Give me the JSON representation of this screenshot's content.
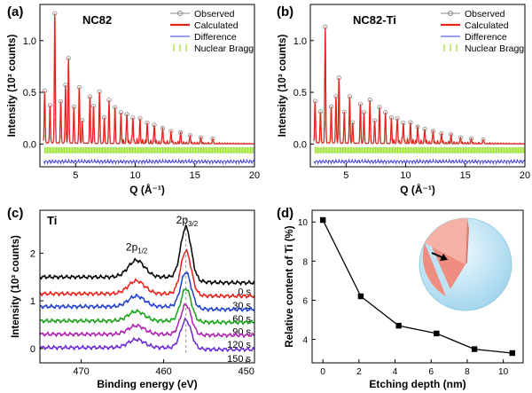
{
  "figure": {
    "colors": {
      "observed": "#888888",
      "calculated": "#e8221b",
      "difference": "#3a3ad8",
      "bragg": "#9ae02c",
      "axis": "#000000"
    }
  },
  "chart_data": [
    {
      "panel": "(a)",
      "type": "line",
      "title": "NC82",
      "xlabel": "Q (Å⁻¹)",
      "ylabel": "Intensity (10³ counts)",
      "xlim": [
        2,
        20
      ],
      "ylim": [
        -0.22,
        1.35
      ],
      "xticks": [
        5,
        10,
        15,
        20
      ],
      "yticks": [
        0.0,
        0.5,
        1.0
      ],
      "legend": [
        "Observed",
        "Calculated",
        "Difference",
        "Nuclear Bragg"
      ],
      "legend_position": "top-right",
      "peaks": [
        {
          "q": 2.4,
          "h": 0.5
        },
        {
          "q": 2.85,
          "h": 0.36
        },
        {
          "q": 3.25,
          "h": 1.25
        },
        {
          "q": 3.75,
          "h": 0.4
        },
        {
          "q": 4.15,
          "h": 0.56
        },
        {
          "q": 4.4,
          "h": 0.82
        },
        {
          "q": 4.85,
          "h": 0.35
        },
        {
          "q": 5.3,
          "h": 0.54
        },
        {
          "q": 5.55,
          "h": 0.22
        },
        {
          "q": 6.2,
          "h": 0.45
        },
        {
          "q": 6.5,
          "h": 0.36
        },
        {
          "q": 7.0,
          "h": 0.5
        },
        {
          "q": 7.4,
          "h": 0.25
        },
        {
          "q": 7.8,
          "h": 0.42
        },
        {
          "q": 8.3,
          "h": 0.35
        },
        {
          "q": 8.8,
          "h": 0.3
        },
        {
          "q": 9.3,
          "h": 0.28
        },
        {
          "q": 9.8,
          "h": 0.25
        },
        {
          "q": 10.4,
          "h": 0.22
        },
        {
          "q": 11.0,
          "h": 0.2
        },
        {
          "q": 11.6,
          "h": 0.18
        },
        {
          "q": 12.3,
          "h": 0.15
        },
        {
          "q": 13.0,
          "h": 0.12
        },
        {
          "q": 13.8,
          "h": 0.1
        },
        {
          "q": 14.6,
          "h": 0.08
        },
        {
          "q": 15.5,
          "h": 0.06
        },
        {
          "q": 16.5,
          "h": 0.05
        }
      ],
      "bragg_level": -0.06,
      "difference_level": -0.17
    },
    {
      "panel": "(b)",
      "type": "line",
      "title": "NC82-Ti",
      "xlabel": "Q (Å⁻¹)",
      "ylabel": "Intensity (10³ counts)",
      "xlim": [
        2,
        20
      ],
      "ylim": [
        -0.22,
        1.35
      ],
      "xticks": [
        5,
        10,
        15,
        20
      ],
      "yticks": [
        0.0,
        0.5,
        1.0
      ],
      "legend": [
        "Observed",
        "Calculated",
        "Difference",
        "Nuclear Bragg"
      ],
      "legend_position": "top-right",
      "peaks": [
        {
          "q": 2.4,
          "h": 0.4
        },
        {
          "q": 2.85,
          "h": 0.3
        },
        {
          "q": 3.25,
          "h": 1.12
        },
        {
          "q": 3.75,
          "h": 0.35
        },
        {
          "q": 4.15,
          "h": 0.45
        },
        {
          "q": 4.4,
          "h": 0.63
        },
        {
          "q": 4.85,
          "h": 0.3
        },
        {
          "q": 5.3,
          "h": 0.45
        },
        {
          "q": 5.55,
          "h": 0.2
        },
        {
          "q": 6.2,
          "h": 0.38
        },
        {
          "q": 6.5,
          "h": 0.3
        },
        {
          "q": 7.0,
          "h": 0.42
        },
        {
          "q": 7.4,
          "h": 0.22
        },
        {
          "q": 7.8,
          "h": 0.35
        },
        {
          "q": 8.3,
          "h": 0.3
        },
        {
          "q": 8.8,
          "h": 0.25
        },
        {
          "q": 9.3,
          "h": 0.24
        },
        {
          "q": 9.8,
          "h": 0.2
        },
        {
          "q": 10.4,
          "h": 0.18
        },
        {
          "q": 11.0,
          "h": 0.16
        },
        {
          "q": 11.6,
          "h": 0.14
        },
        {
          "q": 12.3,
          "h": 0.12
        },
        {
          "q": 13.0,
          "h": 0.1
        },
        {
          "q": 13.8,
          "h": 0.08
        },
        {
          "q": 14.6,
          "h": 0.06
        },
        {
          "q": 15.5,
          "h": 0.05
        },
        {
          "q": 16.5,
          "h": 0.04
        }
      ],
      "bragg_level": -0.06,
      "difference_level": -0.17
    },
    {
      "panel": "(c)",
      "type": "line",
      "title": "Ti",
      "xlabel": "Binding energy (eV)",
      "ylabel": "Intensity (10³ counts)",
      "xlim": [
        475,
        449
      ],
      "xticks": [
        470,
        460,
        450
      ],
      "yticks": [
        0,
        1,
        2
      ],
      "ylim": [
        -0.3,
        2.9
      ],
      "peak_labels": [
        {
          "base": "2p",
          "sub": "1/2",
          "x": 463.3
        },
        {
          "base": "2p",
          "sub": "3/2",
          "x": 457.2
        }
      ],
      "dashed_marker_x": 457.3,
      "series": [
        {
          "name": "0 s",
          "offset": 1.5,
          "p1": 0.35,
          "p2": 1.05,
          "end": 1.38,
          "color": "#000000"
        },
        {
          "name": "30 s",
          "offset": 1.15,
          "p1": 0.27,
          "p2": 0.9,
          "end": 1.1,
          "color": "#e8221b"
        },
        {
          "name": "60 s",
          "offset": 0.88,
          "p1": 0.22,
          "p2": 0.72,
          "end": 0.82,
          "color": "#1f3fd0"
        },
        {
          "name": "90 s",
          "offset": 0.58,
          "p1": 0.2,
          "p2": 0.68,
          "end": 0.55,
          "color": "#17a317"
        },
        {
          "name": "120 s",
          "offset": 0.3,
          "p1": 0.18,
          "p2": 0.62,
          "end": 0.28,
          "color": "#b020b0"
        },
        {
          "name": "150 s",
          "offset": 0.02,
          "p1": 0.17,
          "p2": 0.58,
          "end": -0.02,
          "color": "#6a2ad0"
        }
      ]
    },
    {
      "panel": "(d)",
      "type": "line",
      "xlabel": "Etching depth (nm)",
      "ylabel": "Relative content of Ti (%)",
      "xlim": [
        -0.6,
        11.1
      ],
      "ylim": [
        2.8,
        10.6
      ],
      "xticks": [
        0,
        2,
        4,
        6,
        8,
        10
      ],
      "yticks": [
        4,
        6,
        8,
        10
      ],
      "x": [
        0,
        2.1,
        4.2,
        6.3,
        8.4,
        10.5
      ],
      "y": [
        10.1,
        6.2,
        4.7,
        4.3,
        3.5,
        3.3
      ]
    }
  ]
}
